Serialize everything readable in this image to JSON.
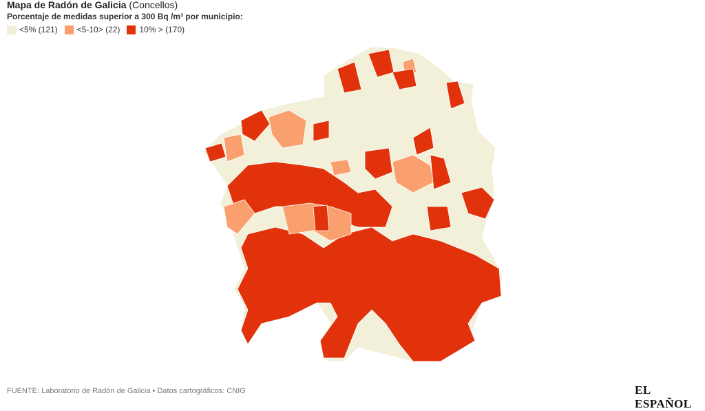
{
  "header": {
    "title_bold": "Mapa de Radón de Galicia",
    "title_rest": "(Concellos)",
    "subtitle": "Porcentaje de medidas superior a 300 Bq /m³ por municipio:"
  },
  "legend": [
    {
      "label": "<5% (121)",
      "color": "#f2f0d8"
    },
    {
      "label": "<5-10> (22)",
      "color": "#f9a06e"
    },
    {
      "label": "10% > (170)",
      "color": "#e1320b"
    }
  ],
  "footer": {
    "source": "FUENTE: Laboratorio de Radón de Galicia • Datos cartográficos: CNIG",
    "logo": "EL ESPAÑOL"
  }
}
